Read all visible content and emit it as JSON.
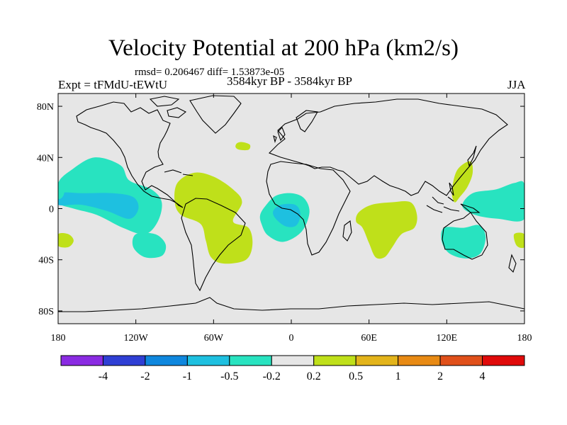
{
  "title": "Velocity Potential at 200 hPa (km2/s)",
  "stats": "rmsd= 0.206467 diff= 1.53873e-05",
  "experiment": "Expt = tFMdU-tEWtU",
  "period": "3584kyr BP - 3584kyr BP",
  "season": "JJA",
  "map": {
    "projection": "cylindrical equidistant",
    "lon_range": [
      -180,
      180
    ],
    "lat_range": [
      -90,
      90
    ],
    "x_ticks": [
      {
        "value": -180,
        "label": "180"
      },
      {
        "value": -120,
        "label": "120W"
      },
      {
        "value": -60,
        "label": "60W"
      },
      {
        "value": 0,
        "label": "0"
      },
      {
        "value": 60,
        "label": "60E"
      },
      {
        "value": 120,
        "label": "120E"
      },
      {
        "value": 180,
        "label": "180"
      }
    ],
    "y_ticks": [
      {
        "value": 80,
        "label": "80N"
      },
      {
        "value": 40,
        "label": "40N"
      },
      {
        "value": 0,
        "label": "0"
      },
      {
        "value": -40,
        "label": "40S"
      },
      {
        "value": -80,
        "label": "80S"
      }
    ],
    "background_color": "#e6e6e6"
  },
  "colorbar": {
    "colors": [
      "#8a2be2",
      "#2f3fd4",
      "#0f87de",
      "#1ec0e0",
      "#28e3c0",
      "#e6e6e6",
      "#bfe01a",
      "#e3b41b",
      "#e88a14",
      "#e0501a",
      "#e00a0a"
    ],
    "labels": [
      "-4",
      "-2",
      "-1",
      "-0.5",
      "-0.2",
      "0.2",
      "0.5",
      "1",
      "2",
      "4"
    ]
  },
  "chart_data": {
    "type": "heatmap",
    "title": "Velocity Potential at 200 hPa (km2/s)",
    "variable": "velocity potential difference",
    "units": "km2/s",
    "levels": [
      -4,
      -2,
      -1,
      -0.5,
      -0.2,
      0.2,
      0.5,
      1,
      2,
      4
    ],
    "regions": [
      {
        "name": "central-pacific-negative",
        "level": -0.2,
        "color": "#28e3c0",
        "lonlat": [
          [
            -170,
            30
          ],
          [
            -152,
            40
          ],
          [
            -132,
            34
          ],
          [
            -125,
            22
          ],
          [
            -108,
            15
          ],
          [
            -100,
            5
          ],
          [
            -103,
            -10
          ],
          [
            -113,
            -20
          ],
          [
            -130,
            -15
          ],
          [
            -150,
            -5
          ],
          [
            -168,
            0
          ],
          [
            -180,
            5
          ],
          [
            -180,
            20
          ]
        ]
      },
      {
        "name": "central-pacific-core",
        "level": -0.5,
        "color": "#1ec0e0",
        "lonlat": [
          [
            -180,
            12
          ],
          [
            -160,
            12
          ],
          [
            -138,
            12
          ],
          [
            -122,
            9
          ],
          [
            -118,
            0
          ],
          [
            -125,
            -8
          ],
          [
            -142,
            -2
          ],
          [
            -162,
            3
          ],
          [
            -180,
            3
          ]
        ]
      },
      {
        "name": "south-pacific-negative",
        "level": -0.2,
        "color": "#28e3c0",
        "lonlat": [
          [
            -120,
            -20
          ],
          [
            -105,
            -20
          ],
          [
            -97,
            -28
          ],
          [
            -100,
            -37
          ],
          [
            -113,
            -38
          ],
          [
            -122,
            -30
          ]
        ]
      },
      {
        "name": "atlantic-africa-negative",
        "level": -0.2,
        "color": "#28e3c0",
        "lonlat": [
          [
            -20,
            2
          ],
          [
            -12,
            10
          ],
          [
            0,
            12
          ],
          [
            10,
            8
          ],
          [
            14,
            -3
          ],
          [
            8,
            -18
          ],
          [
            -6,
            -26
          ],
          [
            -18,
            -21
          ],
          [
            -23,
            -12
          ],
          [
            -24,
            -5
          ]
        ]
      },
      {
        "name": "atlantic-africa-core",
        "level": -0.5,
        "color": "#1ec0e0",
        "lonlat": [
          [
            -14,
            -2
          ],
          [
            -8,
            3
          ],
          [
            3,
            3
          ],
          [
            7,
            -4
          ],
          [
            4,
            -13
          ],
          [
            -4,
            -14
          ],
          [
            -12,
            -8
          ]
        ]
      },
      {
        "name": "australia-negative",
        "level": -0.2,
        "color": "#28e3c0",
        "lonlat": [
          [
            118,
            -15
          ],
          [
            133,
            -15
          ],
          [
            145,
            -13
          ],
          [
            150,
            -22
          ],
          [
            146,
            -35
          ],
          [
            135,
            -39
          ],
          [
            122,
            -35
          ],
          [
            116,
            -25
          ]
        ]
      },
      {
        "name": "west-pacific-negative",
        "level": -0.2,
        "color": "#28e3c0",
        "lonlat": [
          [
            140,
            12
          ],
          [
            158,
            15
          ],
          [
            172,
            20
          ],
          [
            180,
            19
          ],
          [
            180,
            -8
          ],
          [
            160,
            -8
          ],
          [
            142,
            -5
          ],
          [
            132,
            2
          ]
        ]
      },
      {
        "name": "west-pacific-negative-wrap",
        "level": -0.2,
        "color": "#28e3c0",
        "lonlat": [
          [
            -180,
            19
          ],
          [
            -175,
            18
          ],
          [
            -176,
            10
          ],
          [
            -180,
            8
          ]
        ]
      },
      {
        "name": "americas-positive",
        "level": 0.2,
        "color": "#bfe01a",
        "lonlat": [
          [
            -88,
            20
          ],
          [
            -75,
            28
          ],
          [
            -60,
            25
          ],
          [
            -45,
            15
          ],
          [
            -38,
            5
          ],
          [
            -45,
            -10
          ],
          [
            -33,
            -15
          ],
          [
            -30,
            -28
          ],
          [
            -35,
            -40
          ],
          [
            -52,
            -43
          ],
          [
            -62,
            -38
          ],
          [
            -66,
            -25
          ],
          [
            -70,
            -12
          ],
          [
            -85,
            -5
          ],
          [
            -90,
            5
          ]
        ]
      },
      {
        "name": "north-atlantic-positive",
        "level": 0.2,
        "color": "#bfe01a",
        "lonlat": [
          [
            -42,
            51
          ],
          [
            -38,
            52
          ],
          [
            -32,
            50
          ],
          [
            -33,
            46
          ],
          [
            -40,
            46
          ],
          [
            -43,
            48
          ]
        ]
      },
      {
        "name": "indian-ocean-positive",
        "level": 0.2,
        "color": "#bfe01a",
        "lonlat": [
          [
            52,
            -3
          ],
          [
            62,
            3
          ],
          [
            78,
            5
          ],
          [
            92,
            5
          ],
          [
            97,
            -5
          ],
          [
            95,
            -15
          ],
          [
            85,
            -20
          ],
          [
            78,
            -30
          ],
          [
            72,
            -38
          ],
          [
            65,
            -38
          ],
          [
            60,
            -27
          ],
          [
            55,
            -15
          ],
          [
            50,
            -10
          ]
        ]
      },
      {
        "name": "south-china-sea-positive",
        "level": 0.2,
        "color": "#bfe01a",
        "lonlat": [
          [
            128,
            30
          ],
          [
            138,
            37
          ],
          [
            140,
            28
          ],
          [
            136,
            17
          ],
          [
            130,
            9
          ],
          [
            126,
            5
          ],
          [
            124,
            14
          ]
        ]
      },
      {
        "name": "east-pacific-edge-positive",
        "level": 0.2,
        "color": "#bfe01a",
        "lonlat": [
          [
            -180,
            -20
          ],
          [
            -172,
            -20
          ],
          [
            -168,
            -25
          ],
          [
            -172,
            -30
          ],
          [
            -180,
            -29
          ]
        ]
      },
      {
        "name": "dateline-east-positive",
        "level": 0.2,
        "color": "#bfe01a",
        "lonlat": [
          [
            172,
            -20
          ],
          [
            180,
            -20
          ],
          [
            180,
            -30
          ],
          [
            174,
            -29
          ]
        ]
      }
    ]
  }
}
